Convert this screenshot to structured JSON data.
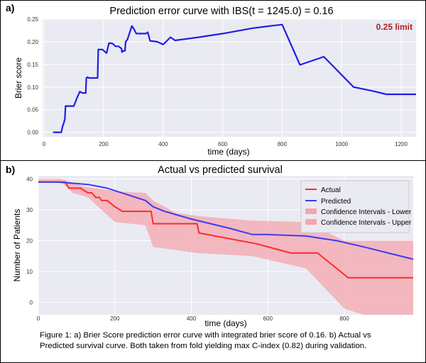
{
  "figure": {
    "panel_a_label": "a)",
    "panel_b_label": "b)",
    "caption_line1": "Figure 1: a) Brier Score prediction error curve with integrated brier score of 0.16. b)  Actual vs",
    "caption_line2": "Predicted survival curve. Both taken from fold yielding max C-index (0.82) during validation."
  },
  "chart_data": [
    {
      "type": "line",
      "title": "Prediction error curve with IBS(t = 1245.0) = 0.16",
      "annotation": "0.25 limit",
      "xlabel": "time (days)",
      "ylabel": "Brier score",
      "xlim": [
        -5,
        1250
      ],
      "ylim": [
        -0.01,
        0.25
      ],
      "xticks": [
        0,
        200,
        400,
        600,
        800,
        1000,
        1200
      ],
      "yticks": [
        0.0,
        0.05,
        0.1,
        0.15,
        0.2,
        0.25
      ],
      "ytick_labels": [
        "0.00",
        "0.05",
        "0.10",
        "0.15",
        "0.20",
        "0.25"
      ],
      "grid": true,
      "colors": {
        "line": "#1f1fe6",
        "annotation": "#b22222",
        "background": "#eaeaf2"
      },
      "series": [
        {
          "x": [
            30,
            58,
            62,
            66,
            70,
            72,
            78,
            100,
            110,
            120,
            128,
            140,
            142,
            146,
            150,
            180,
            182,
            196,
            210,
            218,
            222,
            230,
            240,
            250,
            260,
            262,
            266,
            272,
            274,
            280,
            290,
            295,
            302,
            310,
            320,
            342,
            348,
            352,
            356,
            380,
            400,
            425,
            440,
            520,
            600,
            700,
            760,
            800,
            860,
            940,
            1040,
            1100,
            1150,
            1250
          ],
          "y": [
            0.0,
            0.0,
            0.013,
            0.02,
            0.03,
            0.058,
            0.058,
            0.058,
            0.075,
            0.09,
            0.087,
            0.087,
            0.12,
            0.122,
            0.12,
            0.12,
            0.183,
            0.183,
            0.175,
            0.197,
            0.197,
            0.196,
            0.19,
            0.19,
            0.185,
            0.177,
            0.18,
            0.18,
            0.2,
            0.205,
            0.225,
            0.235,
            0.228,
            0.218,
            0.218,
            0.218,
            0.221,
            0.213,
            0.202,
            0.2,
            0.194,
            0.21,
            0.203,
            0.21,
            0.218,
            0.23,
            0.235,
            0.238,
            0.149,
            0.167,
            0.1,
            0.092,
            0.084,
            0.084
          ]
        }
      ]
    },
    {
      "type": "line",
      "title": "Actual vs predicted survival",
      "xlabel": "time (days)",
      "ylabel": "Number of Patients",
      "xlim": [
        0,
        980
      ],
      "ylim": [
        -4,
        41
      ],
      "xticks": [
        0,
        200,
        400,
        600,
        800
      ],
      "yticks": [
        0,
        10,
        20,
        30,
        40
      ],
      "grid": true,
      "legend_position": "top-right",
      "legend": [
        "Actual",
        "Predicted",
        "Confidence Intervals - Lower",
        "Confidence Intervals - Upper"
      ],
      "colors": {
        "actual": "#ff2a2a",
        "predicted": "#3b3bf0",
        "ci": "#f4a6ad",
        "background": "#eaeaf2"
      },
      "series": [
        {
          "name": "Actual",
          "x": [
            0,
            70,
            80,
            110,
            130,
            140,
            150,
            160,
            165,
            180,
            200,
            220,
            280,
            295,
            300,
            360,
            415,
            420,
            570,
            660,
            730,
            800,
            810,
            980
          ],
          "y": [
            39,
            39,
            37,
            37,
            35.5,
            35.5,
            34,
            34,
            33,
            33,
            31,
            29.5,
            29.5,
            29.5,
            25.5,
            25.5,
            25.5,
            22.5,
            19,
            16,
            16,
            9,
            8,
            8
          ]
        },
        {
          "name": "Predicted",
          "x": [
            0,
            50,
            100,
            130,
            180,
            230,
            280,
            300,
            330,
            400,
            500,
            560,
            600,
            700,
            780,
            850,
            980
          ],
          "y": [
            39,
            39,
            38.5,
            38.2,
            37,
            35,
            33,
            31,
            29.5,
            27,
            24,
            22,
            22,
            21.5,
            20,
            18,
            14
          ]
        },
        {
          "name": "Confidence Intervals - Upper",
          "x": [
            0,
            60,
            120,
            200,
            280,
            300,
            360,
            415,
            560,
            700,
            800,
            980
          ],
          "y": [
            40,
            40,
            37.5,
            36,
            35.5,
            33,
            29,
            28,
            26.5,
            26,
            20,
            20
          ]
        },
        {
          "name": "Confidence Intervals - Lower",
          "x": [
            0,
            60,
            90,
            130,
            200,
            280,
            300,
            415,
            560,
            700,
            800,
            850,
            980
          ],
          "y": [
            39,
            39,
            35.5,
            34,
            26,
            25,
            18,
            16,
            15,
            11,
            -2,
            -4,
            -4
          ]
        }
      ]
    }
  ]
}
